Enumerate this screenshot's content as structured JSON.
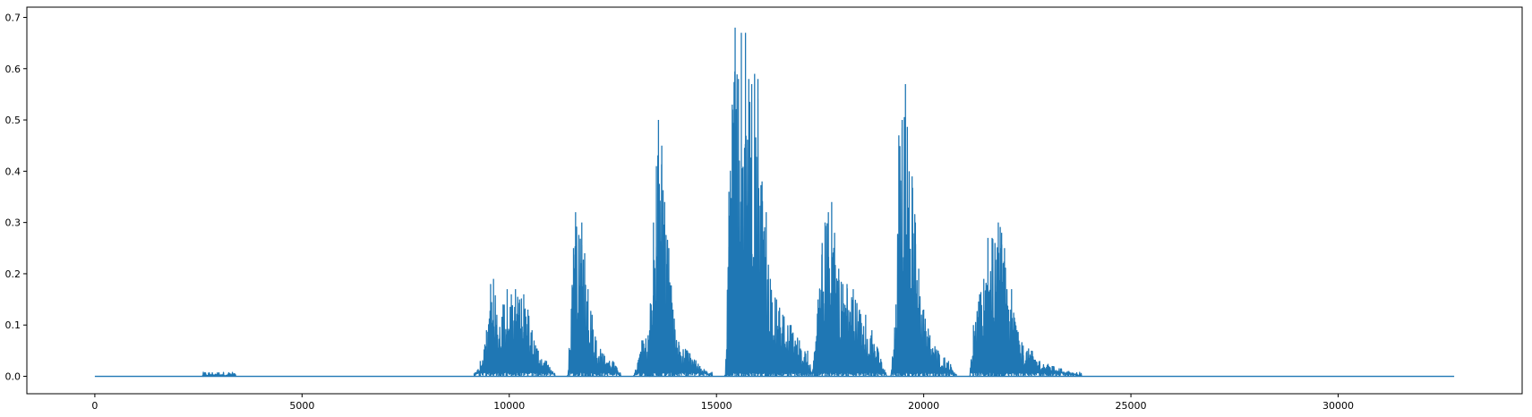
{
  "chart_data": {
    "type": "line",
    "title": "",
    "xlabel": "",
    "ylabel": "",
    "xlim": [
      -1640,
      34440
    ],
    "ylim": [
      -0.034,
      0.72
    ],
    "grid": false,
    "legend": "none",
    "line_color": "#1f77b4",
    "x_ticks": [
      0,
      5000,
      10000,
      15000,
      20000,
      25000,
      30000
    ],
    "x_tick_labels": [
      "0",
      "5000",
      "10000",
      "15000",
      "20000",
      "25000",
      "30000"
    ],
    "y_ticks": [
      0.0,
      0.1,
      0.2,
      0.3,
      0.4,
      0.5,
      0.6,
      0.7
    ],
    "y_tick_labels": [
      "0.0",
      "0.1",
      "0.2",
      "0.3",
      "0.4",
      "0.5",
      "0.6",
      "0.7"
    ],
    "x_range": [
      0,
      32800
    ],
    "baseline": 0.0,
    "bursts": [
      {
        "x_start": 2600,
        "x_end": 3400,
        "peaks": [
          [
            3000,
            0.003
          ]
        ]
      },
      {
        "x_start": 9150,
        "x_end": 11100,
        "peaks": [
          [
            9300,
            0.03
          ],
          [
            9450,
            0.09
          ],
          [
            9550,
            0.18
          ],
          [
            9620,
            0.19
          ],
          [
            9700,
            0.12
          ],
          [
            9850,
            0.14
          ],
          [
            9950,
            0.17
          ],
          [
            10050,
            0.16
          ],
          [
            10150,
            0.17
          ],
          [
            10250,
            0.15
          ],
          [
            10350,
            0.16
          ],
          [
            10450,
            0.13
          ],
          [
            10550,
            0.09
          ],
          [
            10700,
            0.05
          ],
          [
            10900,
            0.03
          ]
        ]
      },
      {
        "x_start": 11400,
        "x_end": 12700,
        "peaks": [
          [
            11550,
            0.25
          ],
          [
            11600,
            0.32
          ],
          [
            11680,
            0.27
          ],
          [
            11750,
            0.3
          ],
          [
            11820,
            0.24
          ],
          [
            11900,
            0.17
          ],
          [
            12000,
            0.12
          ],
          [
            12100,
            0.07
          ],
          [
            12300,
            0.04
          ],
          [
            12500,
            0.03
          ]
        ]
      },
      {
        "x_start": 13000,
        "x_end": 14900,
        "peaks": [
          [
            13200,
            0.07
          ],
          [
            13350,
            0.08
          ],
          [
            13480,
            0.3
          ],
          [
            13550,
            0.41
          ],
          [
            13600,
            0.5
          ],
          [
            13680,
            0.45
          ],
          [
            13750,
            0.34
          ],
          [
            13850,
            0.25
          ],
          [
            13950,
            0.13
          ],
          [
            14100,
            0.06
          ],
          [
            14300,
            0.05
          ],
          [
            14600,
            0.02
          ]
        ]
      },
      {
        "x_start": 15200,
        "x_end": 17300,
        "peaks": [
          [
            15300,
            0.36
          ],
          [
            15380,
            0.53
          ],
          [
            15450,
            0.68
          ],
          [
            15530,
            0.58
          ],
          [
            15600,
            0.67
          ],
          [
            15700,
            0.67
          ],
          [
            15780,
            0.58
          ],
          [
            15850,
            0.57
          ],
          [
            15920,
            0.59
          ],
          [
            16000,
            0.58
          ],
          [
            16100,
            0.38
          ],
          [
            16200,
            0.32
          ],
          [
            16300,
            0.19
          ],
          [
            16450,
            0.15
          ],
          [
            16600,
            0.12
          ],
          [
            16800,
            0.1
          ],
          [
            17000,
            0.07
          ],
          [
            17200,
            0.05
          ]
        ]
      },
      {
        "x_start": 17300,
        "x_end": 19100,
        "peaks": [
          [
            17450,
            0.15
          ],
          [
            17550,
            0.26
          ],
          [
            17620,
            0.3
          ],
          [
            17700,
            0.32
          ],
          [
            17780,
            0.34
          ],
          [
            17850,
            0.28
          ],
          [
            17950,
            0.21
          ],
          [
            18050,
            0.18
          ],
          [
            18150,
            0.18
          ],
          [
            18300,
            0.17
          ],
          [
            18450,
            0.13
          ],
          [
            18600,
            0.12
          ],
          [
            18750,
            0.09
          ],
          [
            18900,
            0.05
          ]
        ]
      },
      {
        "x_start": 19200,
        "x_end": 20800,
        "peaks": [
          [
            19330,
            0.14
          ],
          [
            19400,
            0.47
          ],
          [
            19480,
            0.5
          ],
          [
            19560,
            0.57
          ],
          [
            19650,
            0.4
          ],
          [
            19720,
            0.39
          ],
          [
            19800,
            0.3
          ],
          [
            19880,
            0.21
          ],
          [
            20000,
            0.13
          ],
          [
            20150,
            0.08
          ],
          [
            20350,
            0.05
          ],
          [
            20600,
            0.03
          ]
        ]
      },
      {
        "x_start": 21100,
        "x_end": 23800,
        "peaks": [
          [
            21200,
            0.1
          ],
          [
            21350,
            0.16
          ],
          [
            21450,
            0.19
          ],
          [
            21550,
            0.27
          ],
          [
            21650,
            0.27
          ],
          [
            21720,
            0.26
          ],
          [
            21800,
            0.3
          ],
          [
            21880,
            0.28
          ],
          [
            21950,
            0.25
          ],
          [
            22050,
            0.13
          ],
          [
            22120,
            0.17
          ],
          [
            22250,
            0.09
          ],
          [
            22400,
            0.06
          ],
          [
            22600,
            0.05
          ],
          [
            22800,
            0.03
          ],
          [
            23100,
            0.02
          ],
          [
            23500,
            0.01
          ]
        ]
      }
    ]
  }
}
